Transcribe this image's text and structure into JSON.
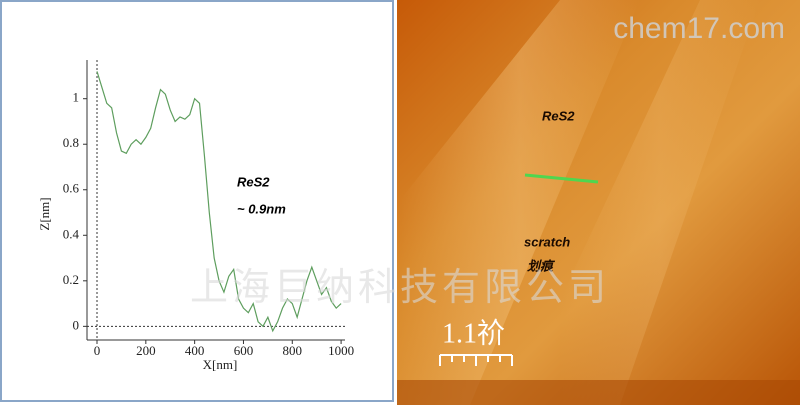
{
  "chart_data": {
    "type": "line",
    "x_label": "X[nm]",
    "y_label": "Z[nm]",
    "annotations": [
      "ReS2",
      "~ 0.9nm"
    ],
    "x": [
      0,
      20,
      40,
      60,
      80,
      100,
      120,
      140,
      160,
      180,
      200,
      220,
      240,
      260,
      280,
      300,
      320,
      340,
      360,
      380,
      400,
      420,
      440,
      460,
      480,
      500,
      520,
      540,
      560,
      580,
      600,
      620,
      640,
      660,
      680,
      700,
      720,
      740,
      760,
      780,
      800,
      820,
      840,
      860,
      880,
      900,
      920,
      940,
      960,
      980,
      1000
    ],
    "series": [
      {
        "color": "#5e9e5e",
        "values": [
          1.12,
          1.05,
          0.98,
          0.96,
          0.85,
          0.77,
          0.76,
          0.8,
          0.82,
          0.8,
          0.83,
          0.87,
          0.96,
          1.04,
          1.02,
          0.95,
          0.9,
          0.92,
          0.91,
          0.93,
          1.0,
          0.98,
          0.75,
          0.5,
          0.3,
          0.2,
          0.15,
          0.22,
          0.25,
          0.12,
          0.08,
          0.06,
          0.1,
          0.02,
          0.0,
          0.04,
          -0.02,
          0.02,
          0.08,
          0.12,
          0.1,
          0.04,
          0.12,
          0.2,
          0.26,
          0.2,
          0.14,
          0.17,
          0.11,
          0.08,
          0.1
        ]
      }
    ],
    "xlim": [
      -41,
      1016
    ],
    "ylim": [
      -0.06,
      1.17
    ],
    "xticks": [
      0,
      200,
      400,
      600,
      800,
      1000
    ],
    "yticks": [
      0,
      0.2,
      0.4,
      0.6,
      0.8,
      1
    ]
  },
  "image_panel": {
    "labels": [
      "ReS2",
      "scratch",
      "划痕"
    ],
    "scale_bar": "1.1祄"
  },
  "watermarks": [
    "chem17.com",
    "上海巨纳科技有限公司"
  ]
}
